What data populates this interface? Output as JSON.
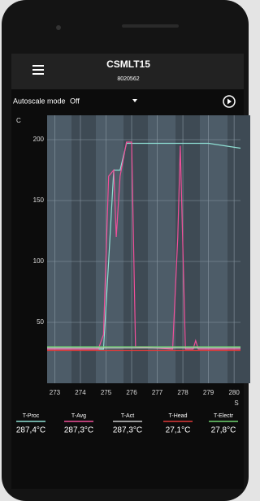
{
  "header": {
    "title": "CSMLT15",
    "subtitle": "8020562"
  },
  "controls": {
    "autoscale_label": "Autoscale mode",
    "autoscale_value": "Off"
  },
  "readings": [
    "287,4°C",
    "287,3°C",
    "287,3°C",
    "27,1°C",
    "27,8°C"
  ],
  "chart_data": {
    "type": "line",
    "y_label": "C",
    "x_label": "S",
    "x": [
      272.7,
      274.7,
      274.9,
      275.1,
      275.3,
      275.4,
      275.55,
      275.8,
      276.0,
      276.15,
      277.6,
      277.8,
      277.9,
      278.1,
      278.4,
      278.5,
      278.6,
      279.0,
      280.25
    ],
    "series": [
      {
        "name": "T-Proc",
        "color": "#8fe0d4",
        "values": [
          28,
          28,
          28,
          100,
          175,
          175,
          175,
          197,
          197,
          197,
          197,
          197,
          197,
          197,
          197,
          197,
          197,
          197,
          193
        ]
      },
      {
        "name": "T-Avg",
        "color": "#f0509a",
        "values": [
          28,
          28,
          40,
          170,
          175,
          120,
          170,
          198,
          198,
          30,
          28,
          120,
          195,
          28,
          28,
          35,
          28,
          28,
          28
        ]
      },
      {
        "name": "T-Act",
        "color": "#c8c8c8",
        "values": [
          29,
          29,
          29,
          29,
          29,
          29,
          29,
          29,
          29,
          29,
          29,
          29,
          29,
          29,
          29,
          29,
          29,
          29,
          29
        ]
      },
      {
        "name": "T-Head",
        "color": "#e03a3a",
        "values": [
          27,
          27,
          27,
          27,
          27,
          27,
          27,
          27,
          27,
          27,
          27,
          27,
          27,
          27,
          27,
          27,
          27,
          27,
          27
        ]
      },
      {
        "name": "T-Electr",
        "color": "#6fd46f",
        "values": [
          30,
          30,
          30,
          30,
          30,
          30,
          30,
          30,
          30,
          30,
          30,
          30,
          30,
          30,
          30,
          30,
          30,
          30,
          30
        ]
      }
    ],
    "xlim": [
      272.7,
      280.25
    ],
    "ylim": [
      0,
      220
    ],
    "xticks": [
      273,
      274,
      275,
      276,
      277,
      278,
      279,
      280
    ],
    "yticks": [
      50,
      100,
      150,
      200
    ],
    "grid": true
  }
}
